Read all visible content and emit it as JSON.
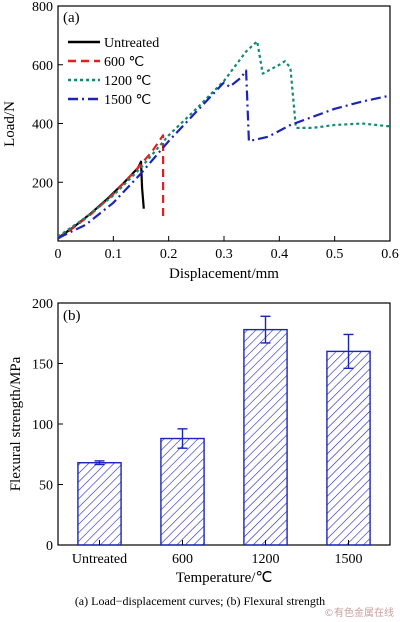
{
  "chart_data": [
    {
      "type": "line",
      "panel_label": "(a)",
      "xlabel": "Displacement/mm",
      "ylabel": "Load/N",
      "xlim": [
        0,
        0.6
      ],
      "ylim": [
        0,
        800
      ],
      "xticks": [
        "0",
        "0.1",
        "0.2",
        "0.3",
        "0.4",
        "0.5",
        "0.6"
      ],
      "yticks": [
        "200",
        "400",
        "600",
        "800"
      ],
      "legend_position": "top-left",
      "series": [
        {
          "name": "Untreated",
          "color": "#000000",
          "style": "solid",
          "points": [
            [
              0,
              10
            ],
            [
              0.03,
              50
            ],
            [
              0.06,
              95
            ],
            [
              0.09,
              145
            ],
            [
              0.12,
              200
            ],
            [
              0.145,
              250
            ],
            [
              0.15,
              270
            ],
            [
              0.152,
              180
            ],
            [
              0.155,
              110
            ]
          ]
        },
        {
          "name": "600 ℃",
          "color": "#e02020",
          "style": "dashed",
          "points": [
            [
              0,
              8
            ],
            [
              0.03,
              48
            ],
            [
              0.06,
              92
            ],
            [
              0.1,
              160
            ],
            [
              0.14,
              240
            ],
            [
              0.17,
              305
            ],
            [
              0.19,
              360
            ],
            [
              0.19,
              230
            ],
            [
              0.19,
              70
            ]
          ]
        },
        {
          "name": "1200 ℃",
          "color": "#138a72",
          "style": "dotted",
          "points": [
            [
              0,
              15
            ],
            [
              0.05,
              80
            ],
            [
              0.1,
              155
            ],
            [
              0.15,
              250
            ],
            [
              0.2,
              360
            ],
            [
              0.25,
              450
            ],
            [
              0.3,
              545
            ],
            [
              0.34,
              645
            ],
            [
              0.36,
              680
            ],
            [
              0.37,
              570
            ],
            [
              0.4,
              600
            ],
            [
              0.41,
              612
            ],
            [
              0.42,
              590
            ],
            [
              0.43,
              385
            ],
            [
              0.46,
              385
            ],
            [
              0.5,
              395
            ],
            [
              0.55,
              400
            ],
            [
              0.6,
              390
            ]
          ]
        },
        {
          "name": "1500 ℃",
          "color": "#1a24b8",
          "style": "dashdot",
          "points": [
            [
              0,
              10
            ],
            [
              0.05,
              55
            ],
            [
              0.1,
              130
            ],
            [
              0.15,
              230
            ],
            [
              0.2,
              340
            ],
            [
              0.25,
              440
            ],
            [
              0.3,
              540
            ],
            [
              0.31,
              525
            ],
            [
              0.33,
              555
            ],
            [
              0.34,
              580
            ],
            [
              0.345,
              340
            ],
            [
              0.38,
              355
            ],
            [
              0.42,
              395
            ],
            [
              0.5,
              450
            ],
            [
              0.55,
              475
            ],
            [
              0.6,
              495
            ]
          ]
        }
      ]
    },
    {
      "type": "bar",
      "panel_label": "(b)",
      "xlabel": "Temperature/℃",
      "ylabel": "Flexural strength/MPa",
      "ylim": [
        0,
        200
      ],
      "yticks": [
        "0",
        "50",
        "100",
        "150",
        "200"
      ],
      "categories": [
        "Untreated",
        "600",
        "1200",
        "1500"
      ],
      "values": [
        68,
        88,
        178,
        160
      ],
      "errors": [
        1.5,
        8,
        11,
        14
      ],
      "bar_color": "#1a24b8",
      "fill": "diagonal-hatch"
    }
  ],
  "caption": "(a) Load−displacement curves; (b) Flexural strength",
  "watermark": "©有色金属在线"
}
